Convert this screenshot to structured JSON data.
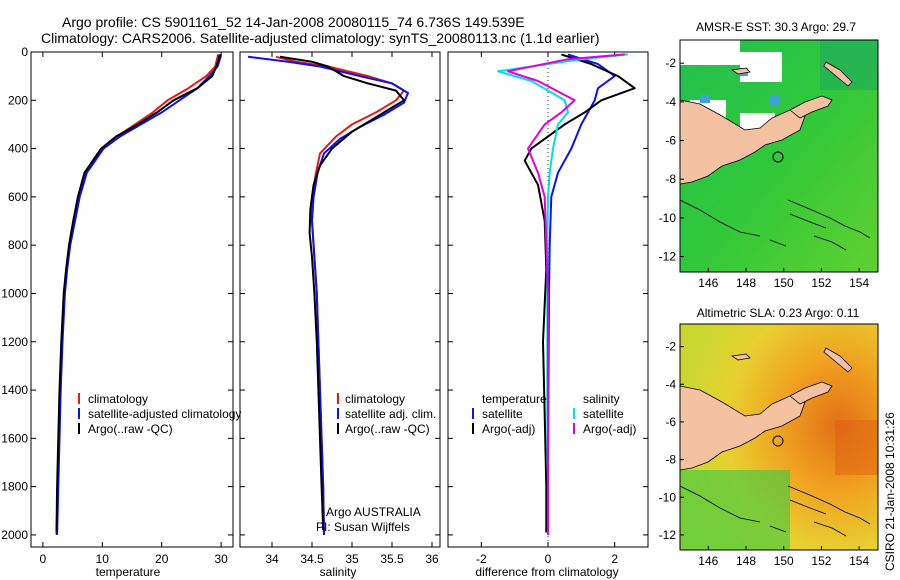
{
  "header": {
    "line1": "Argo profile: CS 5901161_52 14-Jan-2008 20080115_74 6.736S 149.539E",
    "line2": "Climatology: CARS2006. Satellite-adjusted climatology: synTS_20080113.nc (1.1d earlier)"
  },
  "credit": "CSIRO 21-Jan-2008 10:31:26",
  "colors": {
    "climatology": "#e81818",
    "satellite_temp": "#1010e8",
    "satellite_sal": "#00e0e0",
    "argo": "#000000",
    "argo_adj_sal": "#e000e0",
    "land": "#f4c2a0"
  },
  "chart_data": [
    {
      "type": "line",
      "panel": "temperature",
      "xlabel": "temperature",
      "xlim": [
        -2,
        32
      ],
      "ylim": [
        0,
        2050
      ],
      "y_reversed": true,
      "xticks": [
        "0",
        "10",
        "20",
        "30"
      ],
      "yticks": [
        "0",
        "200",
        "400",
        "600",
        "800",
        "1000",
        "1200",
        "1400",
        "1600",
        "1800",
        "2000"
      ],
      "legend": [
        "climatology",
        "satellite-adjusted climatology",
        "Argo(..raw -QC)"
      ],
      "series": [
        {
          "name": "climatology",
          "color": "red",
          "x": [
            29.5,
            29.3,
            29.0,
            27.5,
            24.5,
            21.0,
            18.5,
            15.5,
            12.5,
            10.0,
            8.6,
            7.2,
            6.0,
            5.3,
            4.5,
            4.0,
            3.6,
            3.2,
            2.9,
            2.7,
            2.5,
            2.3
          ],
          "y": [
            10,
            30,
            60,
            100,
            150,
            200,
            250,
            300,
            350,
            400,
            450,
            500,
            600,
            700,
            800,
            900,
            1000,
            1200,
            1400,
            1600,
            1800,
            2000
          ]
        },
        {
          "name": "satellite-adjusted climatology",
          "color": "blue",
          "x": [
            30.0,
            29.8,
            29.4,
            28.0,
            26.0,
            23.0,
            20.0,
            16.5,
            13.0,
            10.2,
            8.8,
            7.4,
            6.2,
            5.4,
            4.6,
            4.1,
            3.7,
            3.3,
            3.0,
            2.8,
            2.6,
            2.4
          ],
          "y": [
            10,
            30,
            60,
            100,
            150,
            200,
            250,
            300,
            350,
            400,
            450,
            500,
            600,
            700,
            800,
            900,
            1000,
            1200,
            1400,
            1600,
            1800,
            2000
          ]
        },
        {
          "name": "Argo(..raw -QC)",
          "color": "black",
          "x": [
            29.8,
            29.6,
            29.2,
            28.5,
            26.0,
            22.0,
            19.2,
            16.0,
            12.3,
            9.8,
            8.4,
            7.0,
            5.9,
            5.1,
            4.4,
            3.9,
            3.5,
            3.1,
            2.8,
            2.6,
            2.4,
            2.3
          ],
          "y": [
            10,
            30,
            60,
            100,
            150,
            200,
            250,
            300,
            350,
            400,
            450,
            500,
            600,
            700,
            800,
            900,
            1000,
            1200,
            1400,
            1600,
            1800,
            1990
          ]
        }
      ]
    },
    {
      "type": "line",
      "panel": "salinity",
      "xlabel": "salinity",
      "xlim": [
        33.6,
        36.1
      ],
      "ylim": [
        0,
        2050
      ],
      "y_reversed": true,
      "xticks": [
        "34",
        "34.5",
        "35",
        "35.5",
        "36"
      ],
      "legend": [
        "climatology",
        "satellite adj. clim.",
        "Argo(..raw -QC)"
      ],
      "annotation": [
        "Argo AUSTRALIA",
        "PI: Susan Wijffels"
      ],
      "series": [
        {
          "name": "climatology",
          "color": "red",
          "x": [
            34.05,
            34.3,
            34.7,
            35.2,
            35.5,
            35.65,
            35.55,
            35.3,
            35.0,
            34.8,
            34.6,
            34.55,
            34.5,
            34.5,
            34.52,
            34.54,
            34.56,
            34.58,
            34.6,
            34.62,
            34.64,
            34.65
          ],
          "y": [
            20,
            40,
            60,
            100,
            130,
            160,
            200,
            250,
            300,
            350,
            420,
            500,
            600,
            700,
            800,
            900,
            1000,
            1200,
            1400,
            1600,
            1800,
            2000
          ]
        },
        {
          "name": "satellite adj. clim.",
          "color": "blue",
          "x": [
            33.7,
            34.2,
            34.6,
            35.1,
            35.5,
            35.7,
            35.65,
            35.4,
            35.1,
            34.85,
            34.65,
            34.57,
            34.52,
            34.5,
            34.52,
            34.54,
            34.56,
            34.58,
            34.6,
            34.62,
            34.64,
            34.65
          ],
          "y": [
            20,
            40,
            60,
            100,
            130,
            170,
            210,
            260,
            310,
            360,
            420,
            500,
            600,
            700,
            800,
            900,
            1000,
            1200,
            1400,
            1600,
            1800,
            2000
          ]
        },
        {
          "name": "Argo(..raw -QC)",
          "color": "black",
          "x": [
            34.1,
            34.5,
            34.7,
            34.75,
            34.9,
            35.2,
            35.55,
            35.65,
            35.35,
            35.0,
            34.75,
            34.6,
            34.52,
            34.48,
            34.47,
            34.5,
            34.53,
            34.56,
            34.58,
            34.6,
            34.62,
            34.64
          ],
          "y": [
            20,
            40,
            60,
            70,
            100,
            130,
            160,
            200,
            260,
            330,
            400,
            470,
            550,
            650,
            750,
            850,
            1000,
            1200,
            1400,
            1600,
            1800,
            1980
          ]
        }
      ]
    },
    {
      "type": "line",
      "panel": "difference",
      "xlabel": "difference from climatology",
      "xlim": [
        -3,
        3
      ],
      "ylim": [
        0,
        2050
      ],
      "y_reversed": true,
      "xticks": [
        "-2",
        "0",
        "2"
      ],
      "legend_temperature": {
        "heading": "temperature",
        "items": [
          "satellite",
          "Argo(-adj)"
        ]
      },
      "legend_salinity": {
        "heading": "salinity",
        "items": [
          "satellite",
          "Argo(-adj)"
        ]
      },
      "series": [
        {
          "name": "satellite",
          "group": "temperature",
          "color": "blue",
          "x": [
            0.6,
            1.5,
            2.0,
            1.5,
            1.4,
            1.2,
            1.0,
            0.7,
            0.3,
            0.1,
            0.05,
            0.03,
            0.02,
            0.01,
            0.0,
            0.0
          ],
          "y": [
            10,
            50,
            100,
            150,
            200,
            250,
            300,
            400,
            500,
            600,
            800,
            1000,
            1200,
            1500,
            1800,
            2000
          ]
        },
        {
          "name": "Argo(-adj)",
          "group": "temperature",
          "color": "black",
          "x": [
            0.4,
            1.3,
            2.1,
            2.6,
            1.6,
            1.1,
            0.5,
            -0.5,
            -0.7,
            -0.3,
            -0.1,
            -0.05,
            -0.15,
            -0.1,
            -0.05,
            -0.05
          ],
          "y": [
            10,
            50,
            100,
            150,
            200,
            250,
            300,
            400,
            450,
            550,
            700,
            900,
            1200,
            1500,
            1800,
            1990
          ]
        },
        {
          "name": "satellite",
          "group": "salinity",
          "color": "cyan",
          "x": [
            2.4,
            1.0,
            -1.5,
            -0.5,
            0.5,
            0.6,
            0.3,
            0.15,
            0.05,
            0.0,
            -0.02,
            -0.02,
            -0.02,
            -0.02,
            0.0,
            0.0
          ],
          "y": [
            10,
            30,
            80,
            120,
            200,
            250,
            300,
            400,
            500,
            600,
            800,
            1000,
            1200,
            1500,
            1800,
            2000
          ]
        },
        {
          "name": "Argo(-adj)",
          "group": "salinity",
          "color": "magenta",
          "x": [
            2.3,
            0.6,
            -1.2,
            -0.3,
            0.8,
            0.4,
            -0.1,
            -0.6,
            -0.3,
            -0.1,
            -0.05,
            0.0,
            0.0,
            0.0,
            0.0,
            0.0
          ],
          "y": [
            10,
            30,
            80,
            120,
            200,
            250,
            300,
            400,
            500,
            600,
            800,
            1000,
            1200,
            1500,
            1800,
            2000
          ]
        }
      ]
    },
    {
      "type": "heatmap",
      "panel": "sst_map",
      "title": "AMSR-E SST: 30.3 Argo: 29.7",
      "xticks": [
        "146",
        "148",
        "150",
        "152",
        "154"
      ],
      "yticks": [
        "-2",
        "-4",
        "-6",
        "-8",
        "-10",
        "-12"
      ],
      "xlim": [
        144.5,
        155
      ],
      "ylim": [
        -12.8,
        -0.8
      ],
      "marker": {
        "lon": 149.539,
        "lat": -6.736
      }
    },
    {
      "type": "heatmap",
      "panel": "sla_map",
      "title": "Altimetric SLA: 0.23 Argo: 0.11",
      "xticks": [
        "146",
        "148",
        "150",
        "152",
        "154"
      ],
      "yticks": [
        "-2",
        "-4",
        "-6",
        "-8",
        "-10",
        "-12"
      ],
      "xlim": [
        144.5,
        155
      ],
      "ylim": [
        -12.8,
        -0.8
      ],
      "marker": {
        "lon": 149.539,
        "lat": -6.736
      }
    }
  ]
}
